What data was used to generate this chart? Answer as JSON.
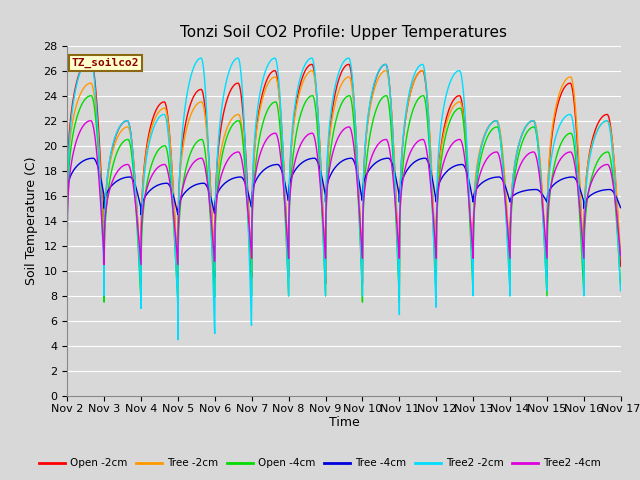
{
  "title": "Tonzi Soil CO2 Profile: Upper Temperatures",
  "xlabel": "Time",
  "ylabel": "Soil Temperature (C)",
  "annotation": "TZ_soilco2",
  "ylim": [
    0,
    28
  ],
  "yticks": [
    0,
    2,
    4,
    6,
    8,
    10,
    12,
    14,
    16,
    18,
    20,
    22,
    24,
    26,
    28
  ],
  "x_tick_labels": [
    "Nov 2",
    "Nov 3",
    "Nov 4",
    "Nov 5",
    "Nov 6",
    "Nov 7",
    "Nov 8",
    "Nov 9",
    "Nov 10",
    "Nov 11",
    "Nov 12",
    "Nov 13",
    "Nov 14",
    "Nov 15",
    "Nov 16",
    "Nov 17"
  ],
  "num_days": 15,
  "pts_per_day": 144,
  "series_colors": {
    "Open -2cm": "#ff0000",
    "Tree -2cm": "#ff9900",
    "Open -4cm": "#00dd00",
    "Tree -4cm": "#0000dd",
    "Tree2 -2cm": "#00ddff",
    "Tree2 -4cm": "#dd00dd"
  },
  "background_color": "#d8d8d8",
  "grid_color": "#ffffff",
  "title_fontsize": 11,
  "label_fontsize": 9,
  "tick_fontsize": 8
}
